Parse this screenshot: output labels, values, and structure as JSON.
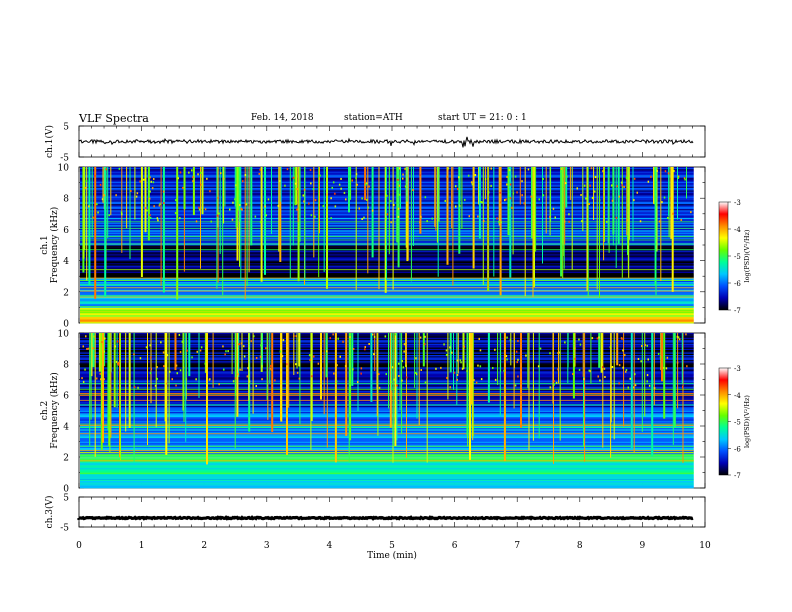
{
  "header": {
    "title": "VLF Spectra",
    "date": "Feb. 14, 2018",
    "station": "station=ATH",
    "start": "start UT = 21: 0 : 1"
  },
  "chart_data": [
    {
      "type": "line",
      "panel": "ch1-waveform",
      "ylabel": "ch.1(V)",
      "ylim": [
        -5,
        5
      ],
      "yticks": [
        "5",
        "-5"
      ],
      "x_range_min": [
        0,
        9.82
      ],
      "waveform_level_V": 0.0,
      "color": "#000000"
    },
    {
      "type": "heatmap",
      "panel": "ch1-spectrogram",
      "ylabel": "ch.1 Frequency (kHz)",
      "ylim": [
        0,
        10
      ],
      "yticks": [
        "0",
        "2",
        "4",
        "6",
        "8",
        "10"
      ],
      "x_range_min": [
        0,
        9.82
      ],
      "colorbar": {
        "label": "log(PSD)(V²/Hz)",
        "range": [
          -7,
          -3
        ],
        "ticks": [
          "-3",
          "-4",
          "-5",
          "-6",
          "-7"
        ],
        "colors": [
          "#000000",
          "#0000b4",
          "#0050ff",
          "#00c8ff",
          "#00ff96",
          "#64ff00",
          "#ffff00",
          "#ff8c00",
          "#ff0000",
          "#ffffff"
        ]
      },
      "bands_kHz": [
        {
          "from": 0,
          "to": 0.4,
          "level": -4.2
        },
        {
          "from": 0.4,
          "to": 1.0,
          "level": -4.6
        },
        {
          "from": 1.0,
          "to": 2.0,
          "level": -5.6
        },
        {
          "from": 2.0,
          "to": 2.9,
          "level": -5.9
        },
        {
          "from": 2.9,
          "to": 5.0,
          "level": -6.8
        },
        {
          "from": 5.0,
          "to": 7.0,
          "level": -6.2
        },
        {
          "from": 7.0,
          "to": 10.0,
          "level": -6.4
        }
      ],
      "features": "Continuous broadband background with numerous vertical sferic impulses extending 2–10 kHz"
    },
    {
      "type": "heatmap",
      "panel": "ch2-spectrogram",
      "ylabel": "ch.2 Frequency (kHz)",
      "ylim": [
        0,
        10
      ],
      "yticks": [
        "0",
        "2",
        "4",
        "6",
        "8",
        "10"
      ],
      "x_range_min": [
        0,
        9.82
      ],
      "colorbar": {
        "label": "log(PSD)(V²/Hz)",
        "range": [
          -7,
          -3
        ],
        "ticks": [
          "-3",
          "-4",
          "-5",
          "-6",
          "-7"
        ]
      },
      "bands_kHz": [
        {
          "from": 0,
          "to": 0.6,
          "level": -5.4
        },
        {
          "from": 0.6,
          "to": 2.2,
          "level": -5.2
        },
        {
          "from": 2.2,
          "to": 5.0,
          "level": -5.9
        },
        {
          "from": 5.0,
          "to": 7.0,
          "level": -6.4
        },
        {
          "from": 7.0,
          "to": 10.0,
          "level": -6.7
        }
      ],
      "features": "Broadband background with frequent vertical sferic impulses and horizontal narrowband lines"
    },
    {
      "type": "line",
      "panel": "ch3-waveform",
      "ylabel": "ch.3(V)",
      "ylim": [
        -5,
        5
      ],
      "yticks": [
        "5",
        "-5"
      ],
      "x_range_min": [
        0,
        9.82
      ],
      "waveform_level_V": -2.0,
      "color": "#000000"
    }
  ],
  "xaxis": {
    "label": "Time (min)",
    "range": [
      0,
      10
    ],
    "ticks": [
      "0",
      "1",
      "2",
      "3",
      "4",
      "5",
      "6",
      "7",
      "8",
      "9",
      "10"
    ]
  }
}
